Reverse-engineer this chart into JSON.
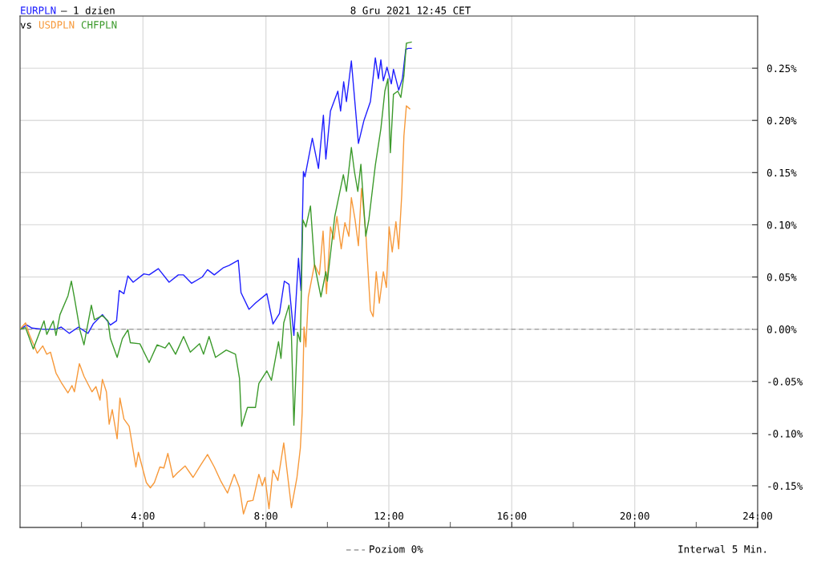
{
  "chart_data": {
    "type": "line",
    "title": "8 Gru 2021 12:45 CET",
    "annotations": [
      "– 1 dzien",
      "vs",
      "Interwal 5 Min."
    ],
    "xlim": [
      0,
      24
    ],
    "ylim": [
      -0.19,
      0.3
    ],
    "xticks": [
      {
        "value": 2,
        "label": null
      },
      {
        "value": 4,
        "label": "4:00"
      },
      {
        "value": 6,
        "label": null
      },
      {
        "value": 8,
        "label": "8:00"
      },
      {
        "value": 10,
        "label": null
      },
      {
        "value": 12,
        "label": "12:00"
      },
      {
        "value": 14,
        "label": null
      },
      {
        "value": 16,
        "label": "16:00"
      },
      {
        "value": 18,
        "label": null
      },
      {
        "value": 20,
        "label": "20:00"
      },
      {
        "value": 22,
        "label": null
      },
      {
        "value": 24,
        "label": "24:00"
      }
    ],
    "yticks": [
      {
        "value": -0.15,
        "label": "-0.15%"
      },
      {
        "value": -0.1,
        "label": "-0.10%"
      },
      {
        "value": -0.05,
        "label": "-0.05%"
      },
      {
        "value": 0,
        "label": "0.00%"
      },
      {
        "value": 0.05,
        "label": "0.05%"
      },
      {
        "value": 0.1,
        "label": "0.10%"
      },
      {
        "value": 0.15,
        "label": "0.15%"
      },
      {
        "value": 0.2,
        "label": "0.20%"
      },
      {
        "value": 0.25,
        "label": "0.25%"
      }
    ],
    "grid": true,
    "legend": "bottom",
    "marker": "none",
    "line_style": "solid",
    "ref_lines": [
      {
        "axis": "y",
        "value": 0,
        "label": "Poziom 0%",
        "color": "#999999",
        "line_style": "dashed"
      }
    ],
    "series": [
      {
        "name": "EURPLN",
        "color": "#1f1fff",
        "x": [
          0,
          0.22,
          0.39,
          0.74,
          1.17,
          1.34,
          1.6,
          1.9,
          2.21,
          2.38,
          2.68,
          2.94,
          3.14,
          3.23,
          3.38,
          3.51,
          3.68,
          4.03,
          4.2,
          4.5,
          4.85,
          5.15,
          5.32,
          5.58,
          5.93,
          6.1,
          6.32,
          6.62,
          6.8,
          7.1,
          7.19,
          7.45,
          7.66,
          8.03,
          8.23,
          8.44,
          8.6,
          8.75,
          8.91,
          9.06,
          9.14,
          9.22,
          9.27,
          9.51,
          9.71,
          9.87,
          9.95,
          10.1,
          10.34,
          10.43,
          10.53,
          10.62,
          10.78,
          11.01,
          11.19,
          11.4,
          11.56,
          11.66,
          11.74,
          11.82,
          11.94,
          12.08,
          12.15,
          12.32,
          12.44,
          12.55,
          12.63,
          12.73
        ],
        "values": [
          0,
          0.004,
          0.001,
          0.0,
          0.0,
          0.002,
          -0.004,
          0.002,
          -0.004,
          0.005,
          0.014,
          0.004,
          0.008,
          0.037,
          0.034,
          0.051,
          0.045,
          0.053,
          0.052,
          0.058,
          0.045,
          0.052,
          0.052,
          0.044,
          0.05,
          0.057,
          0.052,
          0.059,
          0.061,
          0.066,
          0.035,
          0.019,
          0.025,
          0.034,
          0.005,
          0.015,
          0.046,
          0.043,
          -0.006,
          0.068,
          0.037,
          0.151,
          0.146,
          0.183,
          0.154,
          0.205,
          0.163,
          0.209,
          0.228,
          0.209,
          0.237,
          0.218,
          0.257,
          0.178,
          0.2,
          0.218,
          0.26,
          0.24,
          0.258,
          0.238,
          0.251,
          0.235,
          0.249,
          0.229,
          0.24,
          0.268,
          0.269,
          0.269
        ]
      },
      {
        "name": "USDPLN",
        "color": "#f7993a",
        "x": [
          0,
          0.18,
          0.3,
          0.43,
          0.56,
          0.74,
          0.87,
          0.99,
          1.17,
          1.34,
          1.56,
          1.69,
          1.77,
          1.93,
          2.08,
          2.34,
          2.47,
          2.6,
          2.68,
          2.81,
          2.9,
          3.0,
          3.16,
          3.25,
          3.38,
          3.55,
          3.77,
          3.85,
          4.11,
          4.24,
          4.37,
          4.55,
          4.68,
          4.81,
          4.98,
          5.11,
          5.37,
          5.63,
          5.84,
          6.1,
          6.32,
          6.54,
          6.75,
          6.97,
          7.14,
          7.27,
          7.4,
          7.58,
          7.77,
          7.88,
          7.97,
          8.1,
          8.23,
          8.39,
          8.58,
          8.83,
          9.01,
          9.12,
          9.18,
          9.24,
          9.3,
          9.38,
          9.58,
          9.74,
          9.86,
          9.97,
          10.1,
          10.21,
          10.31,
          10.45,
          10.57,
          10.7,
          10.78,
          10.9,
          11.01,
          11.11,
          11.25,
          11.4,
          11.49,
          11.59,
          11.69,
          11.82,
          11.92,
          12.01,
          12.11,
          12.23,
          12.32,
          12.42,
          12.49,
          12.57,
          12.68
        ],
        "values": [
          0,
          0.006,
          -0.005,
          -0.014,
          -0.023,
          -0.016,
          -0.024,
          -0.022,
          -0.042,
          -0.051,
          -0.061,
          -0.054,
          -0.06,
          -0.033,
          -0.045,
          -0.06,
          -0.055,
          -0.068,
          -0.048,
          -0.06,
          -0.091,
          -0.077,
          -0.105,
          -0.066,
          -0.086,
          -0.093,
          -0.132,
          -0.118,
          -0.147,
          -0.152,
          -0.147,
          -0.132,
          -0.133,
          -0.119,
          -0.142,
          -0.138,
          -0.131,
          -0.142,
          -0.132,
          -0.12,
          -0.132,
          -0.146,
          -0.157,
          -0.139,
          -0.152,
          -0.177,
          -0.165,
          -0.164,
          -0.139,
          -0.15,
          -0.142,
          -0.172,
          -0.135,
          -0.145,
          -0.109,
          -0.171,
          -0.142,
          -0.114,
          -0.08,
          0.002,
          -0.017,
          0.031,
          0.062,
          0.052,
          0.094,
          0.034,
          0.098,
          0.086,
          0.108,
          0.077,
          0.102,
          0.089,
          0.126,
          0.105,
          0.08,
          0.135,
          0.092,
          0.018,
          0.012,
          0.055,
          0.025,
          0.055,
          0.04,
          0.098,
          0.074,
          0.103,
          0.077,
          0.129,
          0.185,
          0.214,
          0.211
        ]
      },
      {
        "name": "CHFPLN",
        "color": "#3c9a2c",
        "x": [
          0,
          0.18,
          0.43,
          0.56,
          0.78,
          0.87,
          1.08,
          1.17,
          1.3,
          1.56,
          1.67,
          1.77,
          1.95,
          2.08,
          2.32,
          2.42,
          2.68,
          2.86,
          2.94,
          3.16,
          3.33,
          3.51,
          3.59,
          3.9,
          4.2,
          4.46,
          4.72,
          4.85,
          5.06,
          5.32,
          5.54,
          5.84,
          5.97,
          6.15,
          6.36,
          6.71,
          7.01,
          7.14,
          7.21,
          7.4,
          7.66,
          7.77,
          8.03,
          8.18,
          8.41,
          8.49,
          8.58,
          8.75,
          8.83,
          8.91,
          9.03,
          9.12,
          9.2,
          9.3,
          9.45,
          9.58,
          9.79,
          9.95,
          10.0,
          10.24,
          10.52,
          10.62,
          10.78,
          10.88,
          10.99,
          11.09,
          11.25,
          11.35,
          11.56,
          11.74,
          11.87,
          11.97,
          12.05,
          12.15,
          12.29,
          12.39,
          12.49,
          12.57,
          12.73
        ],
        "values": [
          0,
          0.0015,
          -0.019,
          -0.009,
          0.008,
          -0.005,
          0.008,
          -0.006,
          0.014,
          0.032,
          0.046,
          0.03,
          -0.001,
          -0.015,
          0.023,
          0.009,
          0.013,
          0.008,
          -0.009,
          -0.027,
          -0.009,
          -0.0005,
          -0.013,
          -0.014,
          -0.032,
          -0.015,
          -0.018,
          -0.013,
          -0.024,
          -0.007,
          -0.022,
          -0.014,
          -0.024,
          -0.007,
          -0.027,
          -0.02,
          -0.024,
          -0.047,
          -0.093,
          -0.075,
          -0.075,
          -0.052,
          -0.04,
          -0.049,
          -0.012,
          -0.028,
          0.006,
          0.023,
          -0.006,
          -0.092,
          -0.003,
          -0.012,
          0.105,
          0.098,
          0.118,
          0.062,
          0.031,
          0.055,
          0.046,
          0.108,
          0.148,
          0.132,
          0.174,
          0.151,
          0.132,
          0.158,
          0.089,
          0.105,
          0.157,
          0.192,
          0.228,
          0.24,
          0.169,
          0.225,
          0.228,
          0.222,
          0.243,
          0.274,
          0.275
        ]
      }
    ]
  }
}
